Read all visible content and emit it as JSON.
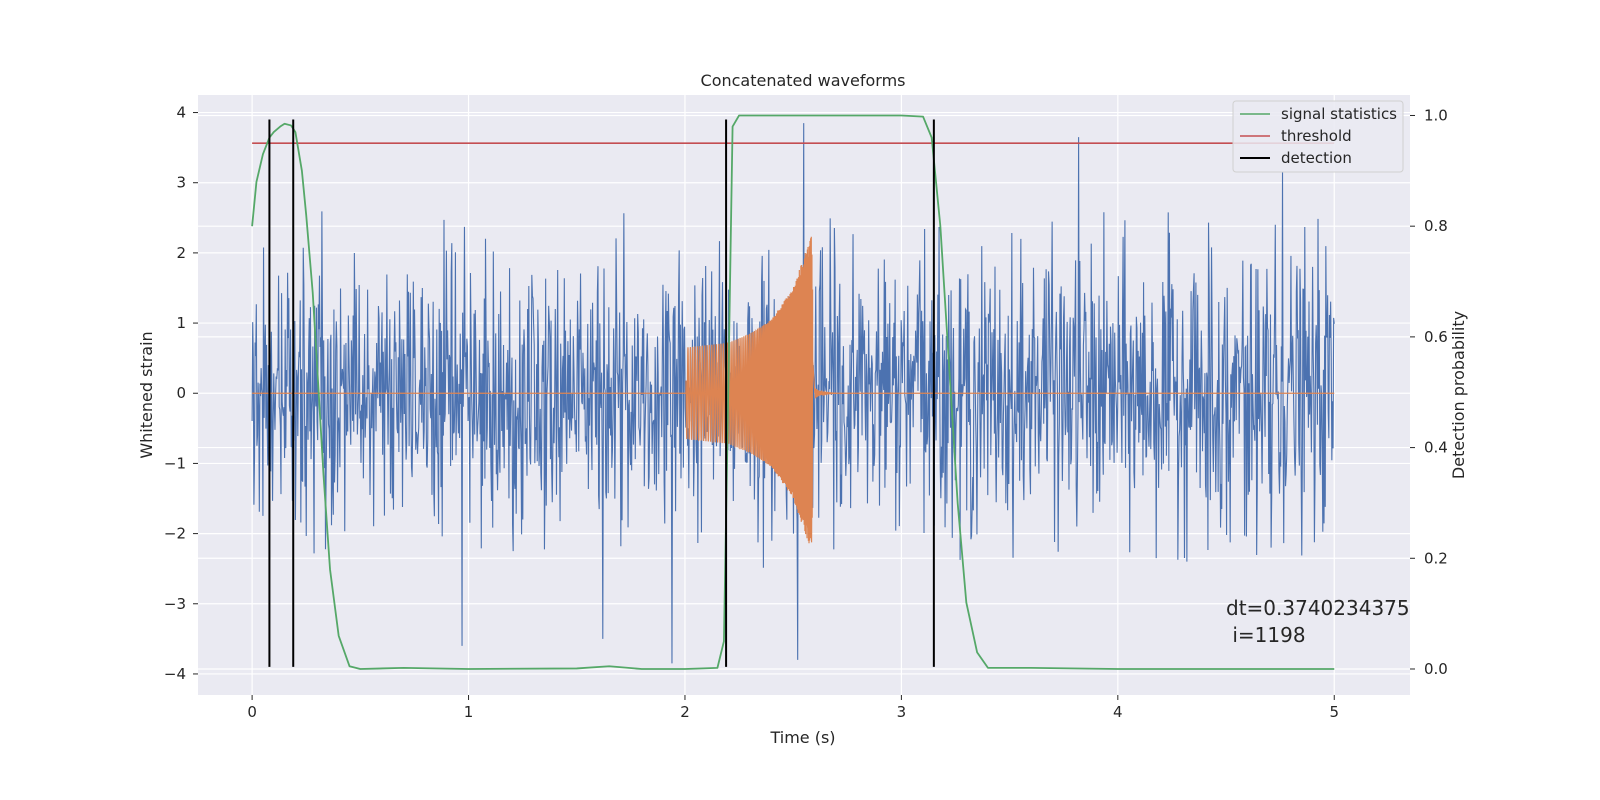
{
  "chart_data": {
    "type": "line",
    "title": "Concatenated waveforms",
    "xlabel": "Time (s)",
    "ylabel": "Whitened strain",
    "y2label": "Detection probability",
    "xlim": [
      -0.25,
      5.35
    ],
    "ylim": [
      -4.3,
      4.25
    ],
    "y2lim": [
      -0.047,
      1.037
    ],
    "xticks": [
      0,
      1,
      2,
      3,
      4,
      5
    ],
    "yticks": [
      -4,
      -3,
      -2,
      -1,
      0,
      1,
      2,
      3,
      4
    ],
    "y2ticks": [
      0.0,
      0.2,
      0.4,
      0.6,
      0.8,
      1.0
    ],
    "grid": true,
    "legend_position": "top-right",
    "colors": {
      "background": "#eaeaf2",
      "grid": "#ffffff",
      "strain": "#4c72b0",
      "injection": "#dd8452",
      "signal_statistics": "#55a868",
      "threshold": "#c44e52",
      "detection": "#000000"
    },
    "series": [
      {
        "name": "",
        "axis": "left",
        "kind": "noise",
        "x_range": [
          0,
          5
        ],
        "amplitude_envelope": [
          -2.5,
          2.6
        ],
        "notable_peaks": [
          {
            "x": 2.55,
            "y": 3.85
          },
          {
            "x": 3.82,
            "y": 3.65
          },
          {
            "x": 4.76,
            "y": 3.15
          },
          {
            "x": 1.94,
            "y": -3.85
          },
          {
            "x": 2.52,
            "y": -3.8
          },
          {
            "x": 0.97,
            "y": -3.6
          },
          {
            "x": 1.62,
            "y": -3.5
          }
        ]
      },
      {
        "name": "",
        "axis": "left",
        "kind": "chirp",
        "x": [
          0.0,
          2.0,
          2.0,
          2.2,
          2.3,
          2.4,
          2.5,
          2.55,
          2.585,
          2.6,
          5.0
        ],
        "amplitude": [
          0.0,
          0.0,
          0.65,
          0.72,
          0.85,
          1.05,
          1.5,
          1.95,
          2.25,
          0.0,
          0.0
        ]
      },
      {
        "name": "signal statistics",
        "axis": "right",
        "x": [
          0.0,
          0.02,
          0.05,
          0.08,
          0.1,
          0.13,
          0.15,
          0.18,
          0.2,
          0.23,
          0.25,
          0.28,
          0.3,
          0.33,
          0.36,
          0.4,
          0.45,
          0.5,
          0.7,
          1.0,
          1.5,
          1.65,
          1.8,
          2.0,
          2.15,
          2.18,
          2.2,
          2.22,
          2.25,
          3.0,
          3.1,
          3.14,
          3.18,
          3.22,
          3.26,
          3.3,
          3.35,
          3.4,
          3.6,
          4.0,
          5.0
        ],
        "values": [
          0.8,
          0.88,
          0.93,
          0.96,
          0.97,
          0.98,
          0.985,
          0.982,
          0.97,
          0.9,
          0.82,
          0.68,
          0.55,
          0.35,
          0.18,
          0.06,
          0.005,
          0.0,
          0.002,
          0.0,
          0.001,
          0.005,
          0.0,
          0.0,
          0.002,
          0.05,
          0.5,
          0.98,
          1.0,
          1.0,
          0.998,
          0.96,
          0.8,
          0.55,
          0.3,
          0.12,
          0.03,
          0.002,
          0.002,
          0.0,
          0.0
        ]
      },
      {
        "name": "threshold",
        "axis": "right",
        "x": [
          0,
          5
        ],
        "values": [
          0.95,
          0.95
        ]
      }
    ],
    "detections": {
      "name": "detection",
      "x": [
        0.08,
        0.19,
        2.19,
        3.15
      ],
      "y_range": [
        -3.9,
        3.9
      ]
    },
    "annotation": {
      "line1": "dt=0.3740234375",
      "line2": " i=1198",
      "x": 4.5,
      "y": -3.05
    }
  }
}
